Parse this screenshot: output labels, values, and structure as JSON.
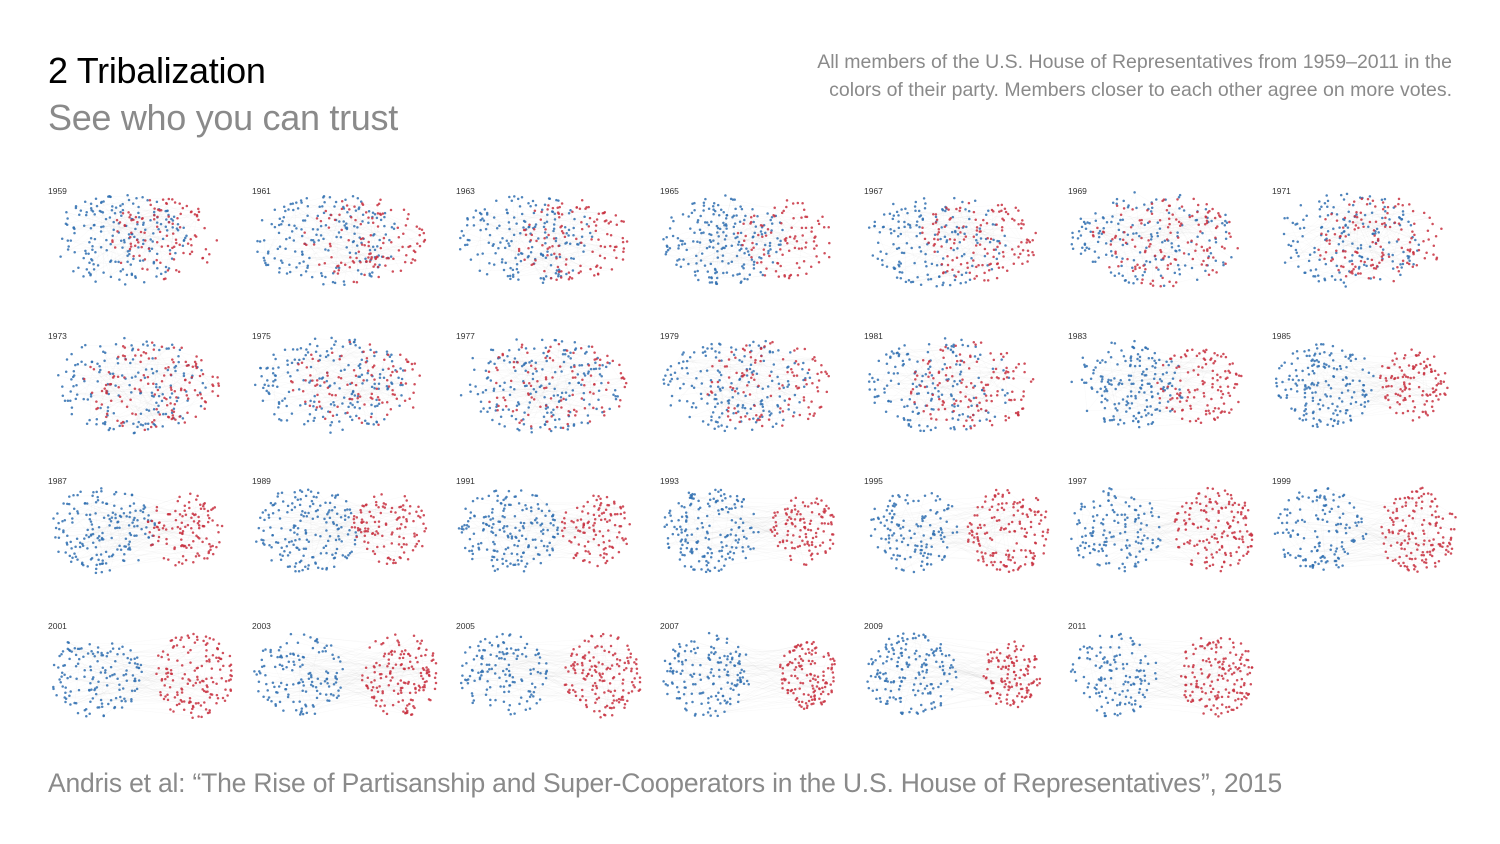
{
  "header": {
    "title": "2 Tribalization",
    "subtitle": "See who you can trust",
    "description_lines": [
      "All members of the U.S. House of Representatives from 1959–2011 in the",
      "colors of their party. Members closer to each other agree on more votes."
    ]
  },
  "colors": {
    "democrat": "#2f6fb0",
    "republican": "#c8303f",
    "edge": "#9a9a9a"
  },
  "panels": [
    {
      "year": "1959"
    },
    {
      "year": "1961"
    },
    {
      "year": "1963"
    },
    {
      "year": "1965"
    },
    {
      "year": "1967"
    },
    {
      "year": "1969"
    },
    {
      "year": "1971"
    },
    {
      "year": "1973"
    },
    {
      "year": "1975"
    },
    {
      "year": "1977"
    },
    {
      "year": "1979"
    },
    {
      "year": "1981"
    },
    {
      "year": "1983"
    },
    {
      "year": "1985"
    },
    {
      "year": "1987"
    },
    {
      "year": "1989"
    },
    {
      "year": "1991"
    },
    {
      "year": "1993"
    },
    {
      "year": "1995"
    },
    {
      "year": "1997"
    },
    {
      "year": "1999"
    },
    {
      "year": "2001"
    },
    {
      "year": "2003"
    },
    {
      "year": "2005"
    },
    {
      "year": "2007"
    },
    {
      "year": "2009"
    },
    {
      "year": "2011"
    }
  ],
  "citation": "Andris et al: “The Rise of Partisanship and Super-Cooperators in the U.S. House of Representatives”, 2015"
}
